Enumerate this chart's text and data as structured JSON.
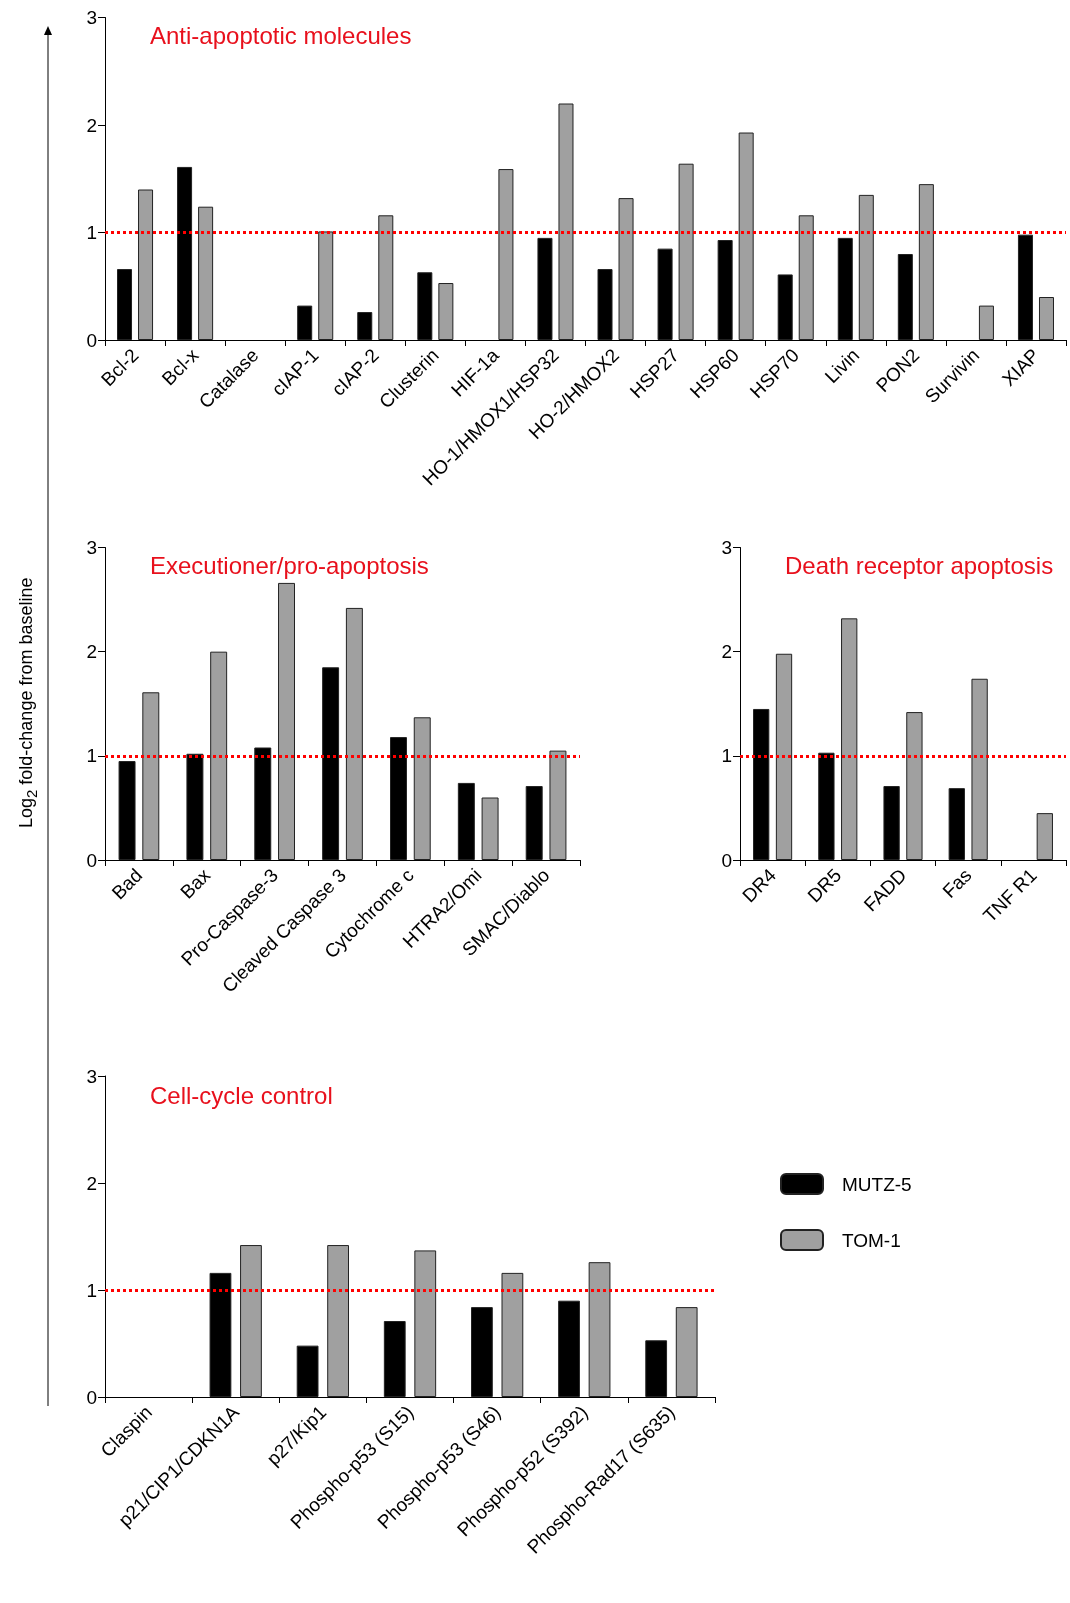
{
  "chart_data": [
    {
      "type": "bar",
      "title": "Anti-apoptotic molecules",
      "categories": [
        "Bcl-2",
        "Bcl-x",
        "Catalase",
        "cIAP-1",
        "cIAP-2",
        "Clusterin",
        "HIF-1a",
        "HO-1/HMOX1/HSP32",
        "HO-2/HMOX2",
        "HSP27",
        "HSP60",
        "HSP70",
        "Livin",
        "PON2",
        "Survivin",
        "XIAP"
      ],
      "series": [
        {
          "color": "#000000",
          "values": [
            0.66,
            1.61,
            null,
            0.32,
            0.26,
            0.63,
            null,
            0.95,
            0.66,
            0.85,
            0.93,
            0.61,
            0.95,
            0.8,
            null,
            0.98
          ]
        },
        {
          "color": "#a0a0a0",
          "values": [
            1.4,
            1.24,
            null,
            1.01,
            1.16,
            0.53,
            1.59,
            2.2,
            1.32,
            1.64,
            1.93,
            1.16,
            1.35,
            1.45,
            0.32,
            0.4
          ]
        }
      ],
      "ylim": [
        0,
        3
      ],
      "yticks": [
        0,
        1,
        2,
        3
      ],
      "ref_lines": [
        {
          "axis": "y",
          "value": 1,
          "color": "#ff0000",
          "line_style": "dotted"
        }
      ]
    },
    {
      "type": "bar",
      "title": "Executioner/pro-apoptosis",
      "ylabel": "Log$_{2}$ fold-change from baseline",
      "categories": [
        "Bad",
        "Bax",
        "Pro-Caspase-3",
        "Cleaved Caspase 3",
        "Cytochrome c",
        "HTRA2/Omi",
        "SMAC/Diablo"
      ],
      "series": [
        {
          "color": "#000000",
          "values": [
            0.95,
            1.02,
            1.08,
            1.85,
            1.18,
            0.74,
            0.71
          ]
        },
        {
          "color": "#a0a0a0",
          "values": [
            1.61,
            2.0,
            2.66,
            2.42,
            1.37,
            0.6,
            1.05
          ]
        }
      ],
      "ylim": [
        0,
        3
      ],
      "yticks": [
        0,
        1,
        2,
        3
      ],
      "ref_lines": [
        {
          "axis": "y",
          "value": 1,
          "color": "#ff0000",
          "line_style": "dotted"
        }
      ]
    },
    {
      "type": "bar",
      "title": "Death receptor apoptosis",
      "categories": [
        "DR4",
        "DR5",
        "FADD",
        "Fas",
        "TNF R1"
      ],
      "series": [
        {
          "color": "#000000",
          "values": [
            1.45,
            1.03,
            0.71,
            0.69,
            null
          ]
        },
        {
          "color": "#a0a0a0",
          "values": [
            1.98,
            2.32,
            1.42,
            1.74,
            0.45
          ]
        }
      ],
      "ylim": [
        0,
        3
      ],
      "yticks": [
        0,
        1,
        2,
        3
      ],
      "ref_lines": [
        {
          "axis": "y",
          "value": 1,
          "color": "#ff0000",
          "line_style": "dotted"
        }
      ]
    },
    {
      "type": "bar",
      "title": "Cell-cycle control",
      "categories": [
        "Claspin",
        "p21/CIP1/CDKN1A",
        "p27/Kip1",
        "Phospho-p53 (S15)",
        "Phospho-p53 (S46)",
        "Phospho-p52 (S392)",
        "Phospho-Rad17 (S635)"
      ],
      "series": [
        {
          "name": "MUTZ-5",
          "color": "#000000",
          "values": [
            null,
            1.16,
            0.48,
            0.71,
            0.84,
            0.9,
            0.53
          ]
        },
        {
          "name": "TOM-1",
          "color": "#a0a0a0",
          "values": [
            null,
            1.42,
            1.42,
            1.37,
            1.16,
            1.26,
            0.84
          ]
        }
      ],
      "ylim": [
        0,
        3
      ],
      "yticks": [
        0,
        1,
        2,
        3
      ],
      "legend": "right",
      "ref_lines": [
        {
          "axis": "y",
          "value": 1,
          "color": "#ff0000",
          "line_style": "dotted"
        }
      ]
    }
  ]
}
